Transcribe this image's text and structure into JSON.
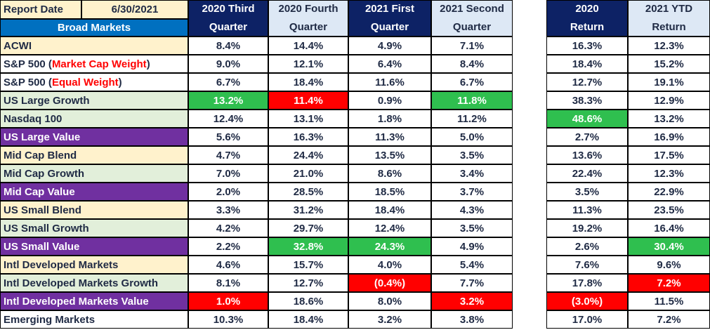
{
  "colors": {
    "navy": "#0d2265",
    "lightblue": "#dde8f5",
    "peach": "#fff2cc",
    "sage": "#e2efda",
    "purple": "#7030a0",
    "bright_blue": "#0070c0",
    "green": "#2fbf4f",
    "red": "#ff0000",
    "text": "#1f2a44",
    "white": "#ffffff"
  },
  "header": {
    "report_date_label": "Report Date",
    "report_date_value": "6/30/2021",
    "section_label": "Broad Markets",
    "quarters": [
      {
        "line1": "2020 Third",
        "line2": "Quarter"
      },
      {
        "line1": "2020 Fourth",
        "line2": "Quarter"
      },
      {
        "line1": "2021 First",
        "line2": "Quarter"
      },
      {
        "line1": "2021 Second",
        "line2": "Quarter"
      }
    ],
    "returns": [
      {
        "line1": "2020",
        "line2": "Return"
      },
      {
        "line1": "2021 YTD",
        "line2": "Return"
      }
    ]
  },
  "rows": [
    {
      "label": "ACWI",
      "label_parts": [
        "ACWI"
      ],
      "label_bg": "peach",
      "values": [
        "8.4%",
        "14.4%",
        "4.9%",
        "7.1%",
        "16.3%",
        "12.3%"
      ],
      "hl": [
        null,
        null,
        null,
        null,
        null,
        null
      ]
    },
    {
      "label": "S&P 500 (Market Cap Weight)",
      "label_parts": [
        "S&P 500 (",
        "Market Cap Weight",
        ")"
      ],
      "label_bg": "white",
      "values": [
        "9.0%",
        "12.1%",
        "6.4%",
        "8.4%",
        "18.4%",
        "15.2%"
      ],
      "hl": [
        null,
        null,
        null,
        null,
        null,
        null
      ]
    },
    {
      "label": "S&P 500 (Equal Weight)",
      "label_parts": [
        "S&P 500 (",
        "Equal Weight",
        ")"
      ],
      "label_bg": "white",
      "values": [
        "6.7%",
        "18.4%",
        "11.6%",
        "6.7%",
        "12.7%",
        "19.1%"
      ],
      "hl": [
        null,
        null,
        null,
        null,
        null,
        null
      ]
    },
    {
      "label": "US Large Growth",
      "label_parts": [
        "US Large Growth"
      ],
      "label_bg": "sage",
      "values": [
        "13.2%",
        "11.4%",
        "0.9%",
        "11.8%",
        "38.3%",
        "12.9%"
      ],
      "hl": [
        "green",
        "red",
        null,
        "green",
        null,
        null
      ]
    },
    {
      "label": "Nasdaq 100",
      "label_parts": [
        "Nasdaq 100"
      ],
      "label_bg": "sage",
      "values": [
        "12.4%",
        "13.1%",
        "1.8%",
        "11.2%",
        "48.6%",
        "13.2%"
      ],
      "hl": [
        null,
        null,
        null,
        null,
        "green",
        null
      ]
    },
    {
      "label": "US Large Value",
      "label_parts": [
        "US Large Value"
      ],
      "label_bg": "purple",
      "values": [
        "5.6%",
        "16.3%",
        "11.3%",
        "5.0%",
        "2.7%",
        "16.9%"
      ],
      "hl": [
        null,
        null,
        null,
        null,
        null,
        null
      ]
    },
    {
      "label": "Mid Cap Blend",
      "label_parts": [
        "Mid Cap Blend"
      ],
      "label_bg": "peach",
      "values": [
        "4.7%",
        "24.4%",
        "13.5%",
        "3.5%",
        "13.6%",
        "17.5%"
      ],
      "hl": [
        null,
        null,
        null,
        null,
        null,
        null
      ]
    },
    {
      "label": "Mid Cap Growth",
      "label_parts": [
        "Mid Cap Growth"
      ],
      "label_bg": "sage",
      "values": [
        "7.0%",
        "21.0%",
        "8.6%",
        "3.4%",
        "22.4%",
        "12.3%"
      ],
      "hl": [
        null,
        null,
        null,
        null,
        null,
        null
      ]
    },
    {
      "label": "Mid Cap Value",
      "label_parts": [
        "Mid Cap Value"
      ],
      "label_bg": "purple",
      "values": [
        "2.0%",
        "28.5%",
        "18.5%",
        "3.7%",
        "3.5%",
        "22.9%"
      ],
      "hl": [
        null,
        null,
        null,
        null,
        null,
        null
      ]
    },
    {
      "label": "US Small Blend",
      "label_parts": [
        "US Small Blend"
      ],
      "label_bg": "peach",
      "values": [
        "3.3%",
        "31.2%",
        "18.4%",
        "4.3%",
        "11.3%",
        "23.5%"
      ],
      "hl": [
        null,
        null,
        null,
        null,
        null,
        null
      ]
    },
    {
      "label": "US Small Growth",
      "label_parts": [
        "US Small Growth"
      ],
      "label_bg": "sage",
      "values": [
        "4.2%",
        "29.7%",
        "12.4%",
        "3.5%",
        "19.2%",
        "16.4%"
      ],
      "hl": [
        null,
        null,
        null,
        null,
        null,
        null
      ]
    },
    {
      "label": "US Small Value",
      "label_parts": [
        "US Small Value"
      ],
      "label_bg": "purple",
      "values": [
        "2.2%",
        "32.8%",
        "24.3%",
        "4.9%",
        "2.6%",
        "30.4%"
      ],
      "hl": [
        null,
        "green",
        "green",
        null,
        null,
        "green"
      ]
    },
    {
      "label": "Intl  Developed Markets",
      "label_parts": [
        "Intl  Developed Markets"
      ],
      "label_bg": "peach",
      "values": [
        "4.6%",
        "15.7%",
        "4.0%",
        "5.4%",
        "7.6%",
        "9.6%"
      ],
      "hl": [
        null,
        null,
        null,
        null,
        null,
        null
      ]
    },
    {
      "label": "Intl  Developed Markets Growth",
      "label_parts": [
        "Intl  Developed Markets Growth"
      ],
      "label_bg": "sage",
      "values": [
        "8.1%",
        "12.7%",
        "(0.4%)",
        "7.7%",
        "17.8%",
        "7.2%"
      ],
      "hl": [
        null,
        null,
        "red",
        null,
        null,
        "red"
      ]
    },
    {
      "label": "Intl  Developed Markets Value",
      "label_parts": [
        "Intl  Developed Markets Value"
      ],
      "label_bg": "purple",
      "values": [
        "1.0%",
        "18.6%",
        "8.0%",
        "3.2%",
        "(3.0%)",
        "11.5%"
      ],
      "hl": [
        "red",
        null,
        null,
        "red",
        "red",
        null
      ]
    },
    {
      "label": "Emerging Markets",
      "label_parts": [
        "Emerging Markets"
      ],
      "label_bg": "white",
      "values": [
        "10.3%",
        "18.4%",
        "3.2%",
        "3.8%",
        "17.0%",
        "7.2%"
      ],
      "hl": [
        null,
        null,
        null,
        null,
        null,
        null
      ]
    }
  ]
}
